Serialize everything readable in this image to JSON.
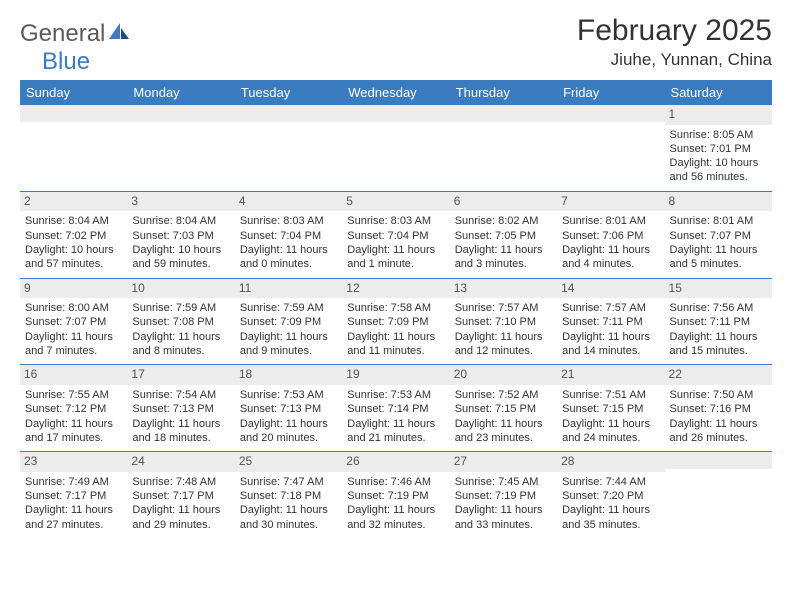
{
  "logo": {
    "text1": "General",
    "text2": "Blue"
  },
  "title": "February 2025",
  "location": "Jiuhe, Yunnan, China",
  "theme": {
    "header_bg": "#3b7bbf",
    "header_fg": "#ffffff",
    "daynum_bg": "#ececec",
    "rule": "#3b7bbf",
    "text": "#333333"
  },
  "day_headers": [
    "Sunday",
    "Monday",
    "Tuesday",
    "Wednesday",
    "Thursday",
    "Friday",
    "Saturday"
  ],
  "weeks": [
    [
      {
        "n": "",
        "lines": []
      },
      {
        "n": "",
        "lines": []
      },
      {
        "n": "",
        "lines": []
      },
      {
        "n": "",
        "lines": []
      },
      {
        "n": "",
        "lines": []
      },
      {
        "n": "",
        "lines": []
      },
      {
        "n": "1",
        "lines": [
          "Sunrise: 8:05 AM",
          "Sunset: 7:01 PM",
          "Daylight: 10 hours and 56 minutes."
        ]
      }
    ],
    [
      {
        "n": "2",
        "lines": [
          "Sunrise: 8:04 AM",
          "Sunset: 7:02 PM",
          "Daylight: 10 hours and 57 minutes."
        ]
      },
      {
        "n": "3",
        "lines": [
          "Sunrise: 8:04 AM",
          "Sunset: 7:03 PM",
          "Daylight: 10 hours and 59 minutes."
        ]
      },
      {
        "n": "4",
        "lines": [
          "Sunrise: 8:03 AM",
          "Sunset: 7:04 PM",
          "Daylight: 11 hours and 0 minutes."
        ]
      },
      {
        "n": "5",
        "lines": [
          "Sunrise: 8:03 AM",
          "Sunset: 7:04 PM",
          "Daylight: 11 hours and 1 minute."
        ]
      },
      {
        "n": "6",
        "lines": [
          "Sunrise: 8:02 AM",
          "Sunset: 7:05 PM",
          "Daylight: 11 hours and 3 minutes."
        ]
      },
      {
        "n": "7",
        "lines": [
          "Sunrise: 8:01 AM",
          "Sunset: 7:06 PM",
          "Daylight: 11 hours and 4 minutes."
        ]
      },
      {
        "n": "8",
        "lines": [
          "Sunrise: 8:01 AM",
          "Sunset: 7:07 PM",
          "Daylight: 11 hours and 5 minutes."
        ]
      }
    ],
    [
      {
        "n": "9",
        "lines": [
          "Sunrise: 8:00 AM",
          "Sunset: 7:07 PM",
          "Daylight: 11 hours and 7 minutes."
        ]
      },
      {
        "n": "10",
        "lines": [
          "Sunrise: 7:59 AM",
          "Sunset: 7:08 PM",
          "Daylight: 11 hours and 8 minutes."
        ]
      },
      {
        "n": "11",
        "lines": [
          "Sunrise: 7:59 AM",
          "Sunset: 7:09 PM",
          "Daylight: 11 hours and 9 minutes."
        ]
      },
      {
        "n": "12",
        "lines": [
          "Sunrise: 7:58 AM",
          "Sunset: 7:09 PM",
          "Daylight: 11 hours and 11 minutes."
        ]
      },
      {
        "n": "13",
        "lines": [
          "Sunrise: 7:57 AM",
          "Sunset: 7:10 PM",
          "Daylight: 11 hours and 12 minutes."
        ]
      },
      {
        "n": "14",
        "lines": [
          "Sunrise: 7:57 AM",
          "Sunset: 7:11 PM",
          "Daylight: 11 hours and 14 minutes."
        ]
      },
      {
        "n": "15",
        "lines": [
          "Sunrise: 7:56 AM",
          "Sunset: 7:11 PM",
          "Daylight: 11 hours and 15 minutes."
        ]
      }
    ],
    [
      {
        "n": "16",
        "lines": [
          "Sunrise: 7:55 AM",
          "Sunset: 7:12 PM",
          "Daylight: 11 hours and 17 minutes."
        ]
      },
      {
        "n": "17",
        "lines": [
          "Sunrise: 7:54 AM",
          "Sunset: 7:13 PM",
          "Daylight: 11 hours and 18 minutes."
        ]
      },
      {
        "n": "18",
        "lines": [
          "Sunrise: 7:53 AM",
          "Sunset: 7:13 PM",
          "Daylight: 11 hours and 20 minutes."
        ]
      },
      {
        "n": "19",
        "lines": [
          "Sunrise: 7:53 AM",
          "Sunset: 7:14 PM",
          "Daylight: 11 hours and 21 minutes."
        ]
      },
      {
        "n": "20",
        "lines": [
          "Sunrise: 7:52 AM",
          "Sunset: 7:15 PM",
          "Daylight: 11 hours and 23 minutes."
        ]
      },
      {
        "n": "21",
        "lines": [
          "Sunrise: 7:51 AM",
          "Sunset: 7:15 PM",
          "Daylight: 11 hours and 24 minutes."
        ]
      },
      {
        "n": "22",
        "lines": [
          "Sunrise: 7:50 AM",
          "Sunset: 7:16 PM",
          "Daylight: 11 hours and 26 minutes."
        ]
      }
    ],
    [
      {
        "n": "23",
        "lines": [
          "Sunrise: 7:49 AM",
          "Sunset: 7:17 PM",
          "Daylight: 11 hours and 27 minutes."
        ]
      },
      {
        "n": "24",
        "lines": [
          "Sunrise: 7:48 AM",
          "Sunset: 7:17 PM",
          "Daylight: 11 hours and 29 minutes."
        ]
      },
      {
        "n": "25",
        "lines": [
          "Sunrise: 7:47 AM",
          "Sunset: 7:18 PM",
          "Daylight: 11 hours and 30 minutes."
        ]
      },
      {
        "n": "26",
        "lines": [
          "Sunrise: 7:46 AM",
          "Sunset: 7:19 PM",
          "Daylight: 11 hours and 32 minutes."
        ]
      },
      {
        "n": "27",
        "lines": [
          "Sunrise: 7:45 AM",
          "Sunset: 7:19 PM",
          "Daylight: 11 hours and 33 minutes."
        ]
      },
      {
        "n": "28",
        "lines": [
          "Sunrise: 7:44 AM",
          "Sunset: 7:20 PM",
          "Daylight: 11 hours and 35 minutes."
        ]
      },
      {
        "n": "",
        "lines": []
      }
    ]
  ]
}
